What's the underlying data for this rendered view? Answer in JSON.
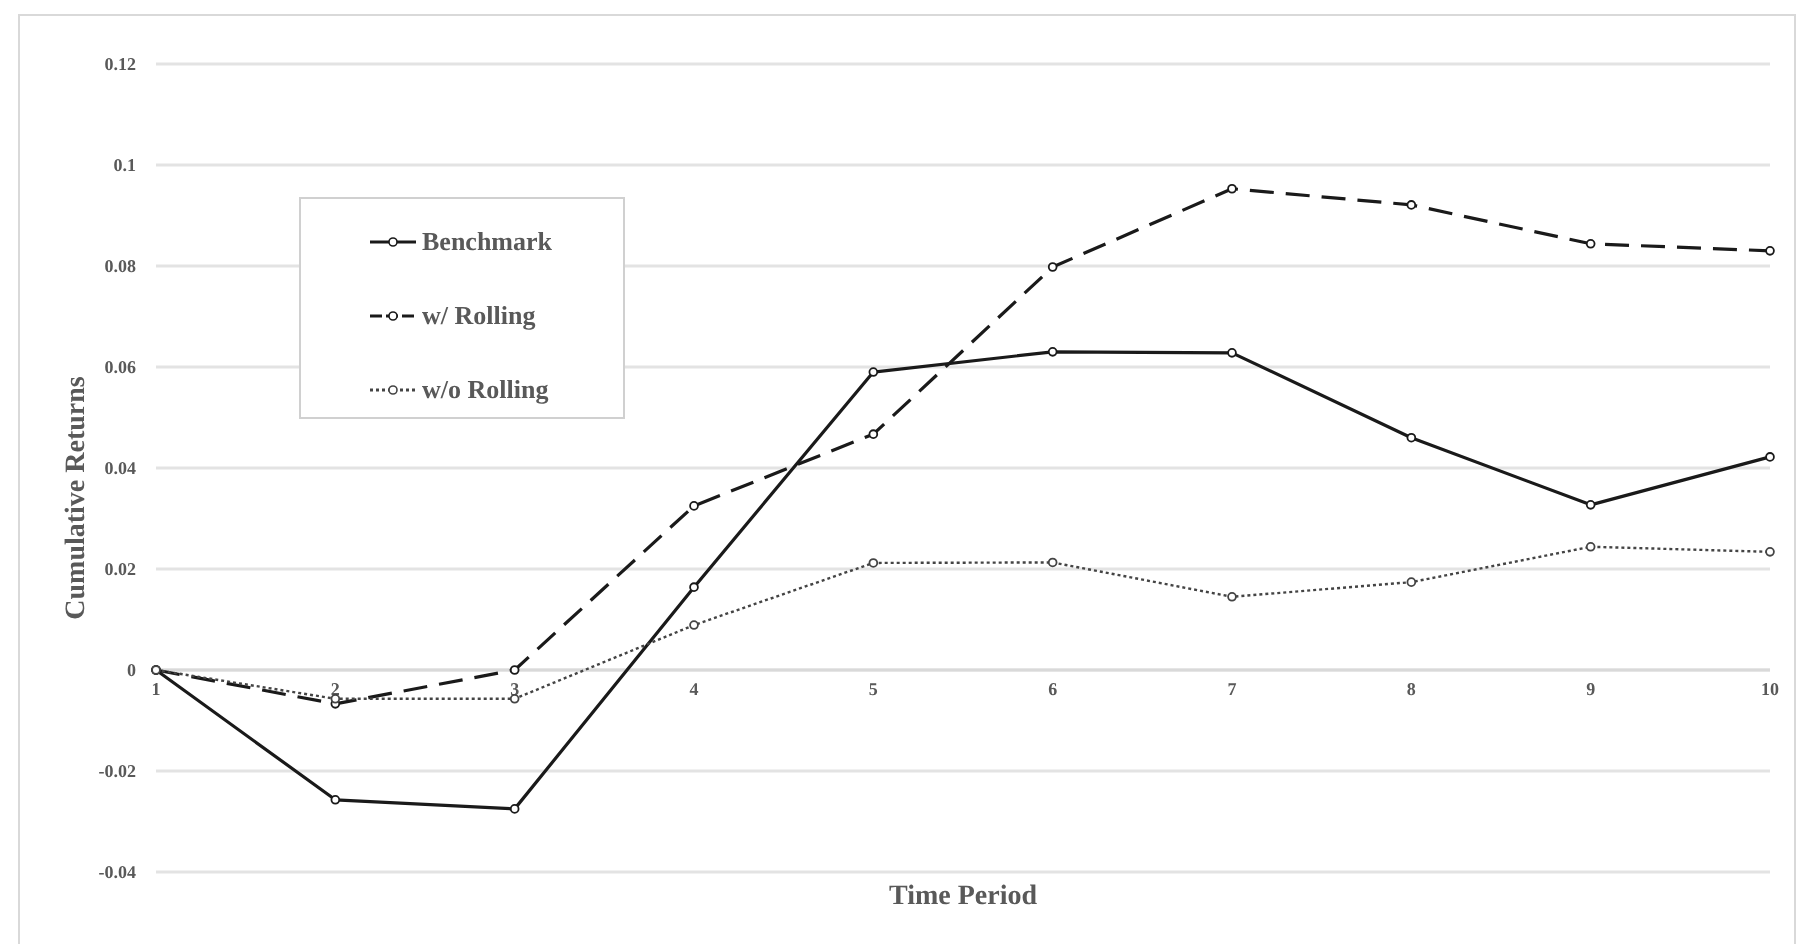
{
  "chart_data": {
    "type": "line",
    "xlabel": "Time Period",
    "ylabel": "Cumulative Returns",
    "x": [
      1,
      2,
      3,
      4,
      5,
      6,
      7,
      8,
      9,
      10
    ],
    "xlim": [
      1,
      10
    ],
    "xticks": [
      1,
      2,
      3,
      4,
      5,
      6,
      7,
      8,
      9,
      10
    ],
    "ylim": [
      -0.04,
      0.12
    ],
    "yticks": [
      -0.04,
      -0.02,
      0,
      0.02,
      0.04,
      0.06,
      0.08,
      0.1,
      0.12
    ],
    "grid": "y",
    "legend": "top left",
    "marker": "circle",
    "series": [
      {
        "name": "Benchmark",
        "color": "#1a1a1a",
        "line_style": "solid",
        "values": [
          0,
          -0.0257,
          -0.0275,
          0.0164,
          0.059,
          0.063,
          0.0628,
          0.046,
          0.0327,
          0.0422
        ]
      },
      {
        "name": "w/ Rolling",
        "color": "#1a1a1a",
        "line_style": "dashed",
        "values": [
          0,
          -0.0067,
          0,
          0.0325,
          0.0467,
          0.0798,
          0.0953,
          0.0921,
          0.0844,
          0.083
        ]
      },
      {
        "name": "w/o Rolling",
        "color": "#444444",
        "line_style": "dotted",
        "values": [
          0,
          -0.0057,
          -0.0057,
          0.0089,
          0.0212,
          0.0213,
          0.0145,
          0.0174,
          0.0244,
          0.0234
        ]
      }
    ]
  }
}
